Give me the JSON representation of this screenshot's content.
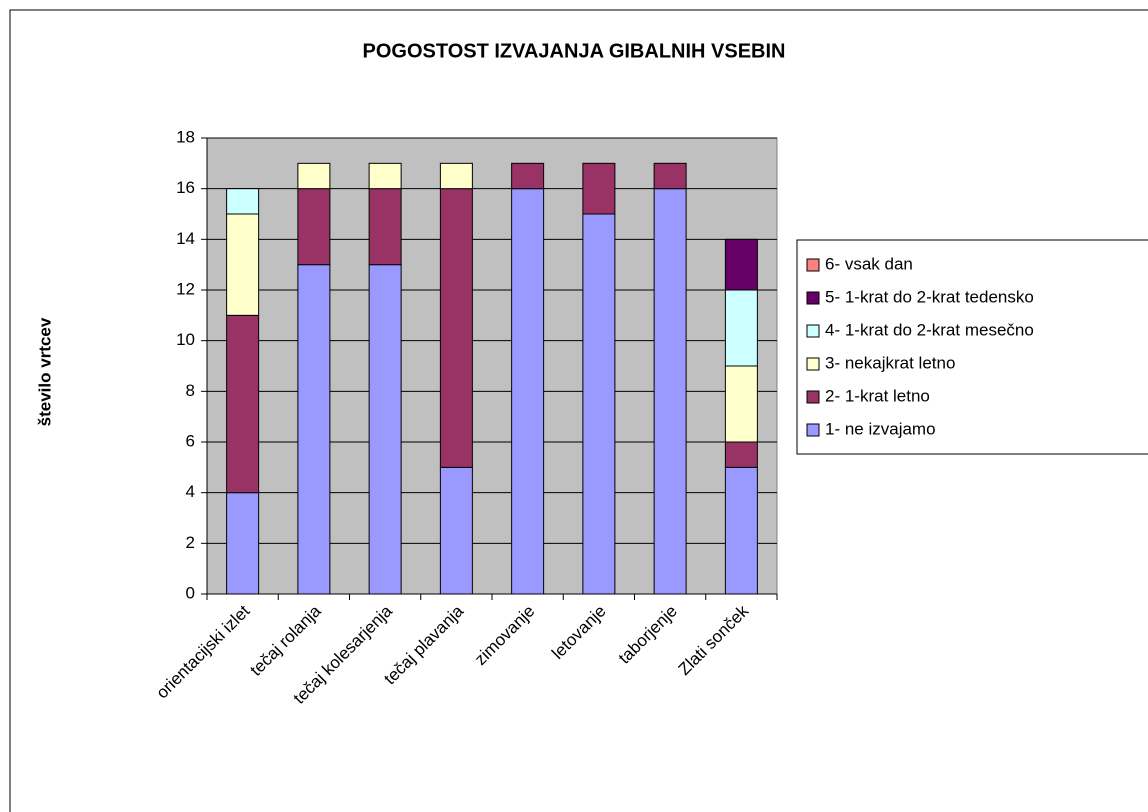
{
  "chart_data": {
    "type": "stacked_bar",
    "title": "POGOSTOST IZVAJANJA GIBALNIH VSEBIN",
    "y_label": "število vrtcev",
    "categories": [
      "orientacijski izlet",
      "tečaj rolanja",
      "tečaj kolesarjenja",
      "tečaj plavanja",
      "zimovanje",
      "letovanje",
      "taborjenje",
      "Zlati sonček"
    ],
    "series": [
      {
        "name": "1- ne izvajamo",
        "color": "#9999ff",
        "values": [
          4,
          13,
          13,
          5,
          16,
          15,
          16,
          5
        ]
      },
      {
        "name": "2- 1-krat letno",
        "color": "#993366",
        "values": [
          7,
          3,
          3,
          11,
          1,
          2,
          1,
          1
        ]
      },
      {
        "name": "3- nekajkrat letno",
        "color": "#ffffcc",
        "values": [
          4,
          1,
          1,
          1,
          0,
          0,
          0,
          3
        ]
      },
      {
        "name": "4- 1-krat do 2-krat mesečno",
        "color": "#ccffff",
        "values": [
          1,
          0,
          0,
          0,
          0,
          0,
          0,
          3
        ]
      },
      {
        "name": "5- 1-krat do 2-krat tedensko",
        "color": "#660066",
        "values": [
          0,
          0,
          0,
          0,
          0,
          0,
          0,
          2
        ]
      },
      {
        "name": "6- vsak dan",
        "color": "#ff8080",
        "values": [
          0,
          0,
          0,
          0,
          0,
          0,
          0,
          0
        ]
      }
    ],
    "ylim": [
      0,
      18
    ],
    "yticks": [
      0,
      2,
      4,
      6,
      8,
      10,
      12,
      14,
      16,
      18
    ],
    "grid": true,
    "plot_background": "#c0c0c0",
    "legend": "right"
  }
}
